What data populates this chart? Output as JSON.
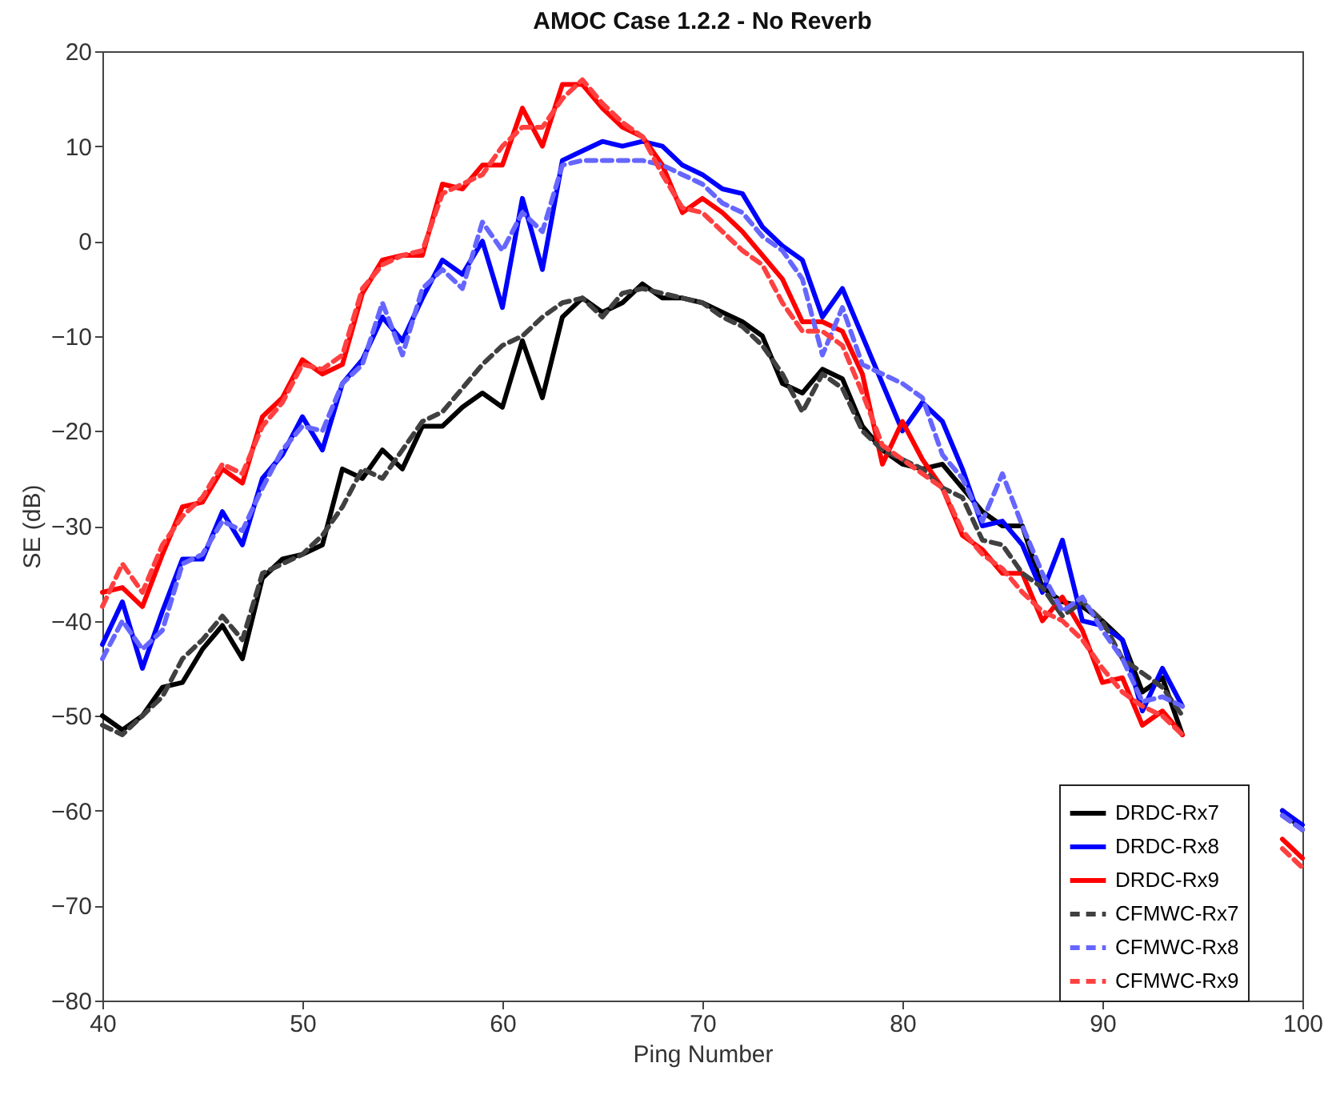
{
  "chart_data": {
    "type": "line",
    "title": "AMOC Case 1.2.2 - No Reverb",
    "xlabel": "Ping Number",
    "ylabel": "SE (dB)",
    "x": [
      40,
      41,
      42,
      43,
      44,
      45,
      46,
      47,
      48,
      49,
      50,
      51,
      52,
      53,
      54,
      55,
      56,
      57,
      58,
      59,
      60,
      61,
      62,
      63,
      64,
      65,
      66,
      67,
      68,
      69,
      70,
      71,
      72,
      73,
      74,
      75,
      76,
      77,
      78,
      79,
      80,
      81,
      82,
      83,
      84,
      85,
      86,
      87,
      88,
      89,
      90,
      91,
      92,
      93,
      94,
      95,
      96,
      97,
      98,
      99,
      100
    ],
    "xlim": [
      40,
      100
    ],
    "xticks": [
      40,
      50,
      60,
      70,
      80,
      90,
      100
    ],
    "ylim": [
      -80,
      20
    ],
    "yticks": [
      -80,
      -70,
      -60,
      -50,
      -40,
      -30,
      -20,
      -10,
      0,
      10,
      20
    ],
    "grid": false,
    "legend": "bottom right",
    "marker": "none",
    "series": [
      {
        "name": "DRDC-Rx7",
        "color": "#000000",
        "line_style": "solid",
        "values": [
          -50,
          -51.5,
          -50,
          -47,
          -46.5,
          -43,
          -40.5,
          -44,
          -35.5,
          -33.5,
          -33,
          -32,
          -24,
          -25,
          -22,
          -24,
          -19.5,
          -19.5,
          -17.5,
          -16,
          -17.5,
          -10.5,
          -16.5,
          -8,
          -6,
          -7.5,
          -6.5,
          -4.5,
          -6,
          -6,
          -6.5,
          -7.5,
          -8.5,
          -10,
          -15,
          -16,
          -13.5,
          -14.5,
          -19.5,
          -22,
          -23.5,
          -24,
          -23.5,
          -26,
          -28.5,
          -30,
          -30,
          -36.5,
          -38,
          -38.5,
          -40,
          -42,
          -47.5,
          -46,
          -52,
          null,
          null,
          null,
          null,
          -60,
          -62
        ]
      },
      {
        "name": "DRDC-Rx8",
        "color": "#0000ff",
        "line_style": "solid",
        "values": [
          -42.5,
          -38,
          -45,
          -39,
          -33.5,
          -33.5,
          -28.5,
          -32,
          -25,
          -22.5,
          -18.5,
          -22,
          -15,
          -12.5,
          -8,
          -10.5,
          -6,
          -2,
          -3.5,
          0,
          -7,
          4.5,
          -3,
          8.5,
          9.5,
          10.5,
          10,
          10.5,
          10,
          8,
          7,
          5.5,
          5,
          1.5,
          -0.5,
          -2,
          -8,
          -5,
          -10,
          -15,
          -20,
          -17,
          -19,
          -24,
          -30,
          -29.5,
          -32,
          -37,
          -31.5,
          -40,
          -40.5,
          -42,
          -49.5,
          -45,
          -49,
          null,
          null,
          null,
          null,
          -60,
          -61.5
        ]
      },
      {
        "name": "DRDC-Rx9",
        "color": "#ff0000",
        "line_style": "solid",
        "values": [
          -37,
          -36.5,
          -38.5,
          -33,
          -28,
          -27.5,
          -24,
          -25.5,
          -18.5,
          -16.5,
          -12.5,
          -14,
          -13,
          -5.5,
          -2,
          -1.5,
          -1.5,
          6,
          5.5,
          8,
          8,
          14,
          10,
          16.5,
          16.5,
          14,
          12,
          11,
          8,
          3,
          4.5,
          3,
          1,
          -1.5,
          -4,
          -8.5,
          -8.5,
          -9.5,
          -14,
          -23.5,
          -19,
          -23,
          -26,
          -31,
          -32.5,
          -35,
          -35,
          -40,
          -37.5,
          -41,
          -46.5,
          -46,
          -51,
          -49.5,
          -52,
          null,
          null,
          null,
          null,
          -63,
          -65
        ]
      },
      {
        "name": "CFMWC-Rx7",
        "color": "#404040",
        "line_style": "dashed",
        "values": [
          -51,
          -52,
          -50,
          -48,
          -44,
          -42,
          -39.5,
          -42,
          -35,
          -34,
          -33,
          -31,
          -28,
          -24,
          -25,
          -22,
          -19,
          -18,
          -15.5,
          -13,
          -11,
          -10,
          -8,
          -6.5,
          -6,
          -8,
          -5.5,
          -5,
          -5.5,
          -6,
          -6.5,
          -8,
          -9,
          -11,
          -14,
          -18,
          -14,
          -15.5,
          -20,
          -22,
          -23,
          -24,
          -26,
          -27,
          -31.5,
          -32,
          -35,
          -36.5,
          -39.5,
          -38,
          -40,
          -44,
          -45.5,
          -47,
          -50,
          null,
          null,
          null,
          null,
          -60.5,
          -62
        ]
      },
      {
        "name": "CFMWC-Rx8",
        "color": "#6666ff",
        "line_style": "dashed",
        "values": [
          -44,
          -40,
          -43,
          -41,
          -34,
          -33,
          -29.5,
          -30.5,
          -26,
          -22,
          -19.5,
          -20,
          -15,
          -13,
          -6.5,
          -12,
          -5,
          -3,
          -5,
          2,
          -1,
          3,
          1,
          8,
          8.5,
          8.5,
          8.5,
          8.5,
          8,
          7,
          6,
          4,
          3,
          0.5,
          -1,
          -4,
          -12,
          -7,
          -13,
          -14,
          -15,
          -16.5,
          -22.5,
          -25,
          -29.5,
          -24.5,
          -30,
          -35,
          -39,
          -37.5,
          -41,
          -44,
          -48.5,
          -48,
          -49,
          null,
          null,
          null,
          null,
          -60.5,
          -62
        ]
      },
      {
        "name": "CFMWC-Rx9",
        "color": "#ff4040",
        "line_style": "dashed",
        "values": [
          -38.5,
          -34,
          -37,
          -32,
          -29,
          -27,
          -23.5,
          -24.5,
          -19.5,
          -17,
          -13,
          -13.5,
          -12,
          -5,
          -2.5,
          -1.5,
          -1,
          5,
          6,
          7,
          10,
          12,
          12,
          15,
          17,
          14.5,
          12.5,
          11,
          7,
          3.5,
          3,
          1,
          -1,
          -2.5,
          -6.5,
          -9.5,
          -9.5,
          -11,
          -16,
          -21.5,
          -23,
          -24.5,
          -26,
          -30.5,
          -33,
          -34.5,
          -37,
          -39,
          -40,
          -42,
          -45,
          -47.5,
          -49,
          -50,
          -52,
          null,
          null,
          null,
          null,
          -64,
          -66
        ]
      }
    ]
  }
}
